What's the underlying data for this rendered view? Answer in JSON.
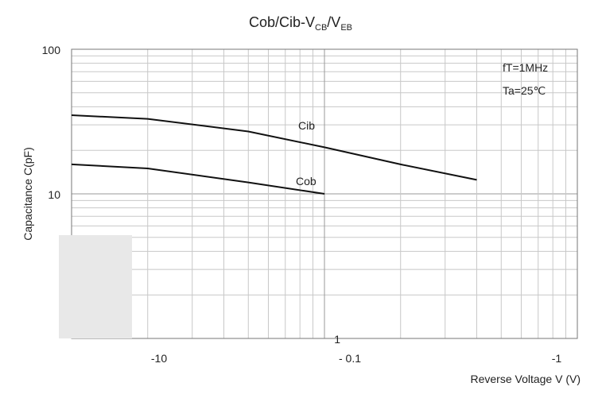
{
  "chart_data": {
    "type": "line",
    "title_main": "Cob/Cib-V",
    "title_sub1": "CB",
    "title_sep": "/V",
    "title_sub2": "EB",
    "ylabel": "Capacitance  C(pF)",
    "xlabel": "Reverse Voltage  V (V)",
    "xscale": "log",
    "yscale": "log",
    "xlim": [
      -0.01,
      -1
    ],
    "ylim": [
      1,
      100
    ],
    "y_ticks": [
      "100",
      "10",
      "1"
    ],
    "x_ticks": [
      "-10",
      "- 0.1",
      "-1"
    ],
    "grid": true,
    "annotations": [
      "fT=1MHz",
      "Ta=25℃"
    ],
    "series": [
      {
        "name": "Cib",
        "x": [
          -0.01,
          -0.02,
          -0.05,
          -0.1,
          -0.2,
          -0.4
        ],
        "y": [
          35,
          33,
          27,
          21,
          16,
          12.5
        ]
      },
      {
        "name": "Cob",
        "x": [
          -0.01,
          -0.02,
          -0.05,
          -0.1
        ],
        "y": [
          16,
          15,
          12,
          10
        ]
      }
    ]
  }
}
